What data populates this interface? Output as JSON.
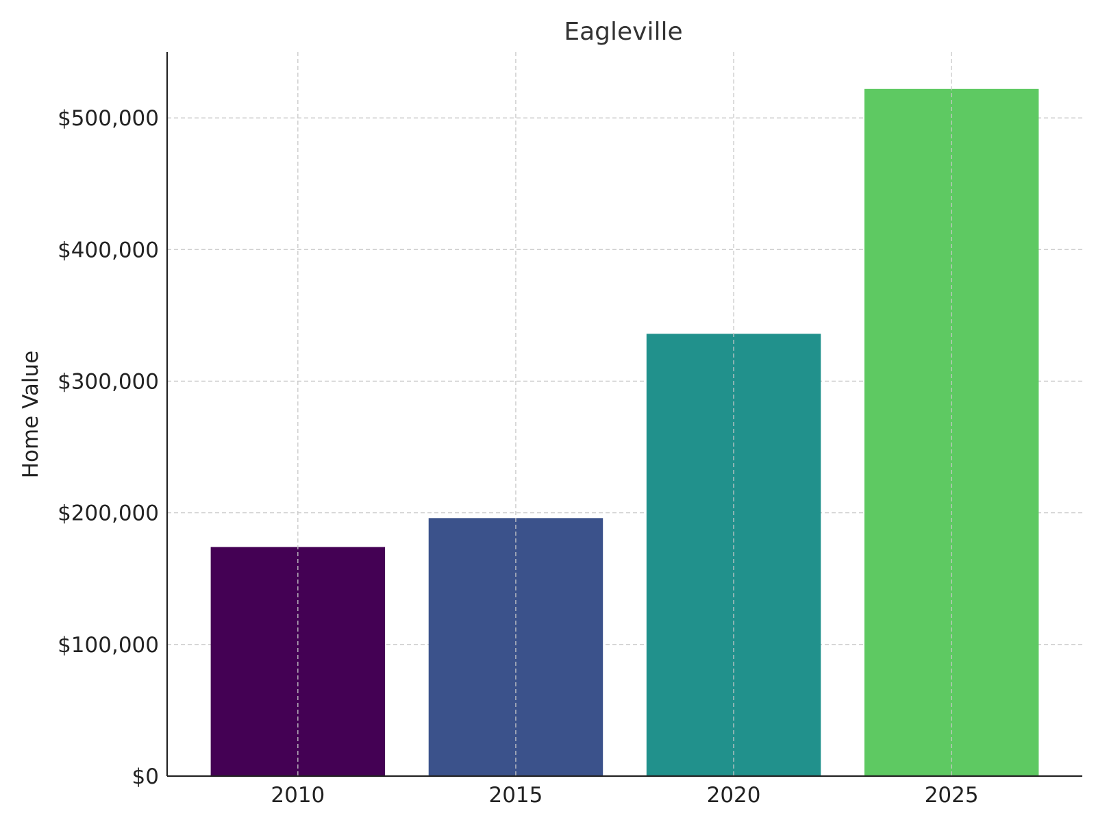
{
  "chart_data": {
    "type": "bar",
    "title": "Eagleville",
    "xlabel": "",
    "ylabel": "Home Value",
    "categories": [
      "2010",
      "2015",
      "2020",
      "2025"
    ],
    "values": [
      174000,
      196000,
      336000,
      522000
    ],
    "colors": [
      "#440154",
      "#3b528b",
      "#21918c",
      "#5ec962"
    ],
    "ylim": [
      0,
      550000
    ],
    "yticks": [
      0,
      100000,
      200000,
      300000,
      400000,
      500000
    ],
    "ytick_labels": [
      "$0",
      "$100,000",
      "$200,000",
      "$300,000",
      "$400,000",
      "$500,000"
    ],
    "grid": true
  }
}
